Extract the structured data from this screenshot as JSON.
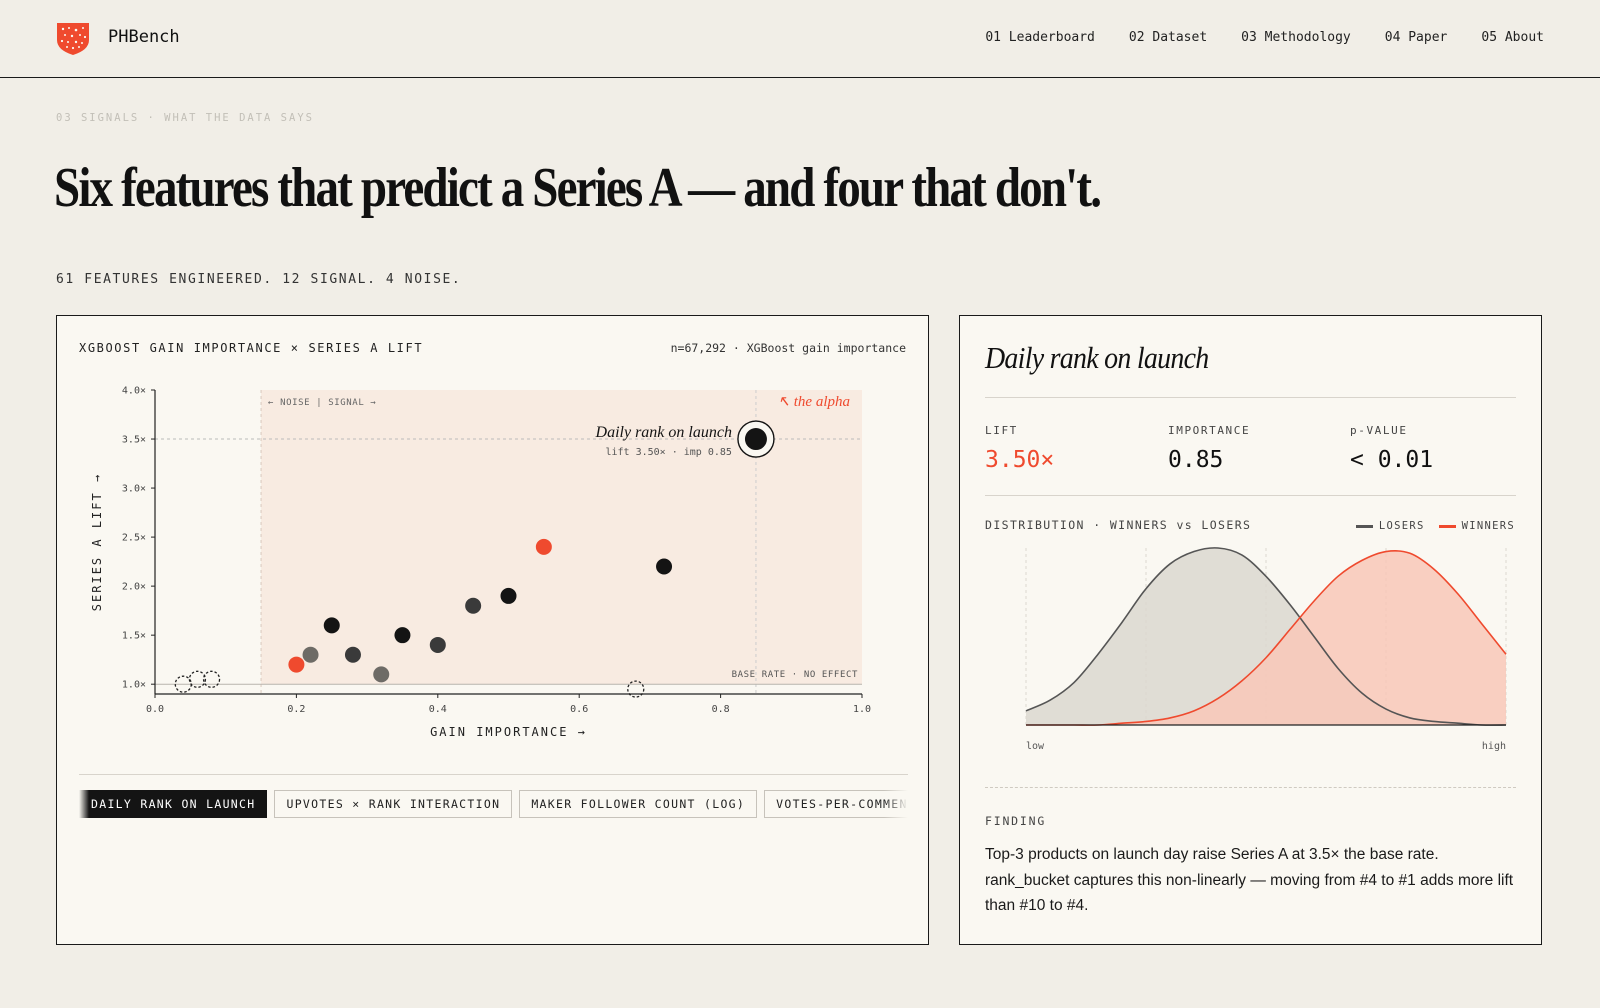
{
  "brand": {
    "name": "PHBench",
    "logo_icon": "shield-dots-icon",
    "accent": "#ef4a2e"
  },
  "nav": [
    {
      "label": "01 Leaderboard"
    },
    {
      "label": "02 Dataset"
    },
    {
      "label": "03 Methodology"
    },
    {
      "label": "04 Paper"
    },
    {
      "label": "05 About"
    }
  ],
  "section": {
    "eyebrow": "03  SIGNALS · WHAT THE DATA SAYS",
    "headline": "Six features that predict a Series A — and four that don't.",
    "subline": "61 FEATURES ENGINEERED. 12 SIGNAL. 4 NOISE."
  },
  "scatter_card": {
    "title": "XGBOOST GAIN IMPORTANCE × SERIES A LIFT",
    "meta": "n=67,292 · XGBoost gain importance",
    "tabs": [
      {
        "label": "DAILY RANK ON LAUNCH",
        "active": true
      },
      {
        "label": "UPVOTES × RANK INTERACTION",
        "active": false
      },
      {
        "label": "MAKER FOLLOWER COUNT (LOG)",
        "active": false
      },
      {
        "label": "VOTES-PER-COMMENT RA",
        "active": false
      }
    ]
  },
  "chart_data": [
    {
      "type": "scatter",
      "title": "",
      "xlabel": "GAIN IMPORTANCE →",
      "ylabel": "SERIES A LIFT →",
      "xlim": [
        0,
        1
      ],
      "ylim": [
        0.9,
        4.0
      ],
      "x_ticks": [
        "0.0",
        "0.2",
        "0.4",
        "0.6",
        "0.8",
        "1.0"
      ],
      "x_tick_values": [
        0,
        0.2,
        0.4,
        0.6,
        0.8,
        1.0
      ],
      "y_ticks": [
        "1.0×",
        "1.5×",
        "2.0×",
        "2.5×",
        "3.0×",
        "3.5×",
        "4.0×"
      ],
      "y_tick_values": [
        1.0,
        1.5,
        2.0,
        2.5,
        3.0,
        3.5,
        4.0
      ],
      "grid": false,
      "signal_threshold": 0.15,
      "region_label": "← NOISE | SIGNAL →",
      "baseline": {
        "y": 1.0,
        "label": "BASE RATE · NO EFFECT"
      },
      "annotation": {
        "text": "↖ the alpha",
        "color": "#ef4a2e"
      },
      "highlight": {
        "name": "Daily rank on launch",
        "detail": "lift 3.50× · imp 0.85",
        "x": 0.85,
        "y": 3.5
      },
      "points": [
        {
          "x": 0.2,
          "y": 1.2,
          "kind": "accent"
        },
        {
          "x": 0.22,
          "y": 1.3,
          "kind": "gray"
        },
        {
          "x": 0.25,
          "y": 1.6,
          "kind": "dark"
        },
        {
          "x": 0.28,
          "y": 1.3,
          "kind": "darkgray"
        },
        {
          "x": 0.32,
          "y": 1.1,
          "kind": "gray"
        },
        {
          "x": 0.35,
          "y": 1.5,
          "kind": "dark"
        },
        {
          "x": 0.4,
          "y": 1.4,
          "kind": "darkgray"
        },
        {
          "x": 0.45,
          "y": 1.8,
          "kind": "darkgray"
        },
        {
          "x": 0.5,
          "y": 1.9,
          "kind": "dark"
        },
        {
          "x": 0.55,
          "y": 2.4,
          "kind": "accent"
        },
        {
          "x": 0.72,
          "y": 2.2,
          "kind": "dark"
        },
        {
          "x": 0.85,
          "y": 3.5,
          "kind": "highlight"
        },
        {
          "x": 0.04,
          "y": 1.0,
          "kind": "noise"
        },
        {
          "x": 0.06,
          "y": 1.05,
          "kind": "noise"
        },
        {
          "x": 0.08,
          "y": 1.05,
          "kind": "noise"
        },
        {
          "x": 0.68,
          "y": 0.95,
          "kind": "noise"
        }
      ],
      "colors": {
        "accent": "#ef4a2e",
        "dark": "#141414",
        "darkgray": "#3a3a3a",
        "gray": "#6e6b66",
        "region": "#f8ebe1"
      }
    },
    {
      "type": "area",
      "title": "DISTRIBUTION · WINNERS vs LOSERS",
      "x_labels": [
        "low",
        "high"
      ],
      "series": [
        {
          "name": "LOSERS",
          "color": "#555555",
          "fill": "#dbd8d0",
          "values": [
            0.08,
            0.14,
            0.24,
            0.4,
            0.58,
            0.77,
            0.91,
            0.98,
            1.0,
            0.96,
            0.84,
            0.68,
            0.5,
            0.32,
            0.18,
            0.09,
            0.04,
            0.02,
            0.01,
            0.0,
            0.0
          ]
        },
        {
          "name": "WINNERS",
          "color": "#ef4a2e",
          "fill": "#f8c8b8",
          "values": [
            0.0,
            0.0,
            0.0,
            0.0,
            0.01,
            0.02,
            0.04,
            0.08,
            0.15,
            0.25,
            0.38,
            0.54,
            0.7,
            0.84,
            0.93,
            0.98,
            0.97,
            0.88,
            0.74,
            0.57,
            0.4
          ]
        }
      ]
    }
  ],
  "detail_card": {
    "title": "Daily rank on launch",
    "stats": [
      {
        "label": "LIFT",
        "value": "3.50×",
        "accent": true
      },
      {
        "label": "IMPORTANCE",
        "value": "0.85",
        "accent": false
      },
      {
        "label": "p-VALUE",
        "value": "< 0.01",
        "accent": false
      }
    ],
    "distribution_label": "DISTRIBUTION · WINNERS vs LOSERS",
    "legend": [
      {
        "label": "LOSERS",
        "color": "#555555"
      },
      {
        "label": "WINNERS",
        "color": "#ef4a2e"
      }
    ],
    "finding_label": "FINDING",
    "finding_text": "Top-3 products on launch day raise Series A at 3.5× the base rate. rank_bucket captures this non-linearly — moving from #4 to #1 adds more lift than #10 to #4."
  }
}
